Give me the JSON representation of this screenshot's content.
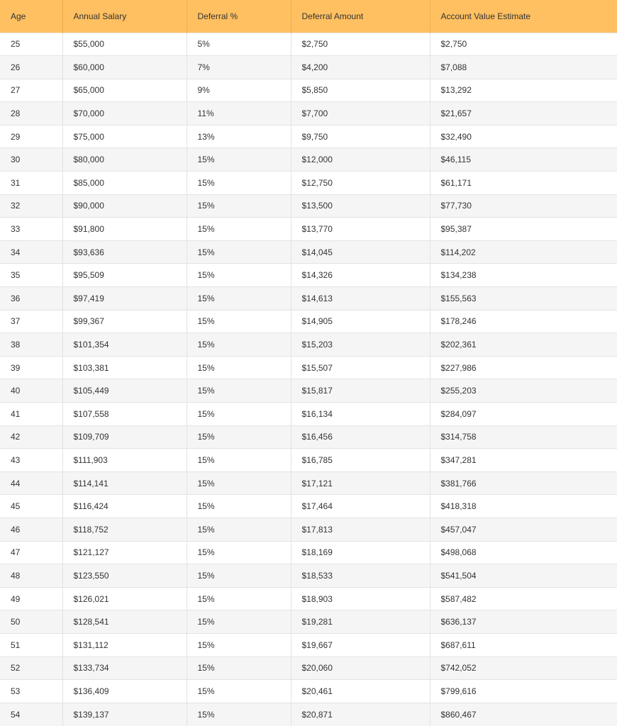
{
  "colors": {
    "header_bg": "#FFC061",
    "stripe_bg": "#F5F5F5",
    "text": "#333333"
  },
  "table": {
    "headers": [
      "Age",
      "Annual Salary",
      "Deferral %",
      "Deferral Amount",
      "Account Value Estimate"
    ],
    "rows": [
      [
        "25",
        "$55,000",
        "5%",
        "$2,750",
        "$2,750"
      ],
      [
        "26",
        "$60,000",
        "7%",
        "$4,200",
        "$7,088"
      ],
      [
        "27",
        "$65,000",
        "9%",
        "$5,850",
        "$13,292"
      ],
      [
        "28",
        "$70,000",
        "11%",
        "$7,700",
        "$21,657"
      ],
      [
        "29",
        "$75,000",
        "13%",
        "$9,750",
        "$32,490"
      ],
      [
        "30",
        "$80,000",
        "15%",
        "$12,000",
        "$46,115"
      ],
      [
        "31",
        "$85,000",
        "15%",
        "$12,750",
        "$61,171"
      ],
      [
        "32",
        "$90,000",
        "15%",
        "$13,500",
        "$77,730"
      ],
      [
        "33",
        "$91,800",
        "15%",
        "$13,770",
        "$95,387"
      ],
      [
        "34",
        "$93,636",
        "15%",
        "$14,045",
        "$114,202"
      ],
      [
        "35",
        "$95,509",
        "15%",
        "$14,326",
        "$134,238"
      ],
      [
        "36",
        "$97,419",
        "15%",
        "$14,613",
        "$155,563"
      ],
      [
        "37",
        "$99,367",
        "15%",
        "$14,905",
        "$178,246"
      ],
      [
        "38",
        "$101,354",
        "15%",
        "$15,203",
        "$202,361"
      ],
      [
        "39",
        "$103,381",
        "15%",
        "$15,507",
        "$227,986"
      ],
      [
        "40",
        "$105,449",
        "15%",
        "$15,817",
        "$255,203"
      ],
      [
        "41",
        "$107,558",
        "15%",
        "$16,134",
        "$284,097"
      ],
      [
        "42",
        "$109,709",
        "15%",
        "$16,456",
        "$314,758"
      ],
      [
        "43",
        "$111,903",
        "15%",
        "$16,785",
        "$347,281"
      ],
      [
        "44",
        "$114,141",
        "15%",
        "$17,121",
        "$381,766"
      ],
      [
        "45",
        "$116,424",
        "15%",
        "$17,464",
        "$418,318"
      ],
      [
        "46",
        "$118,752",
        "15%",
        "$17,813",
        "$457,047"
      ],
      [
        "47",
        "$121,127",
        "15%",
        "$18,169",
        "$498,068"
      ],
      [
        "48",
        "$123,550",
        "15%",
        "$18,533",
        "$541,504"
      ],
      [
        "49",
        "$126,021",
        "15%",
        "$18,903",
        "$587,482"
      ],
      [
        "50",
        "$128,541",
        "15%",
        "$19,281",
        "$636,137"
      ],
      [
        "51",
        "$131,112",
        "15%",
        "$19,667",
        "$687,611"
      ],
      [
        "52",
        "$133,734",
        "15%",
        "$20,060",
        "$742,052"
      ],
      [
        "53",
        "$136,409",
        "15%",
        "$20,461",
        "$799,616"
      ],
      [
        "54",
        "$139,137",
        "15%",
        "$20,871",
        "$860,467"
      ]
    ]
  }
}
